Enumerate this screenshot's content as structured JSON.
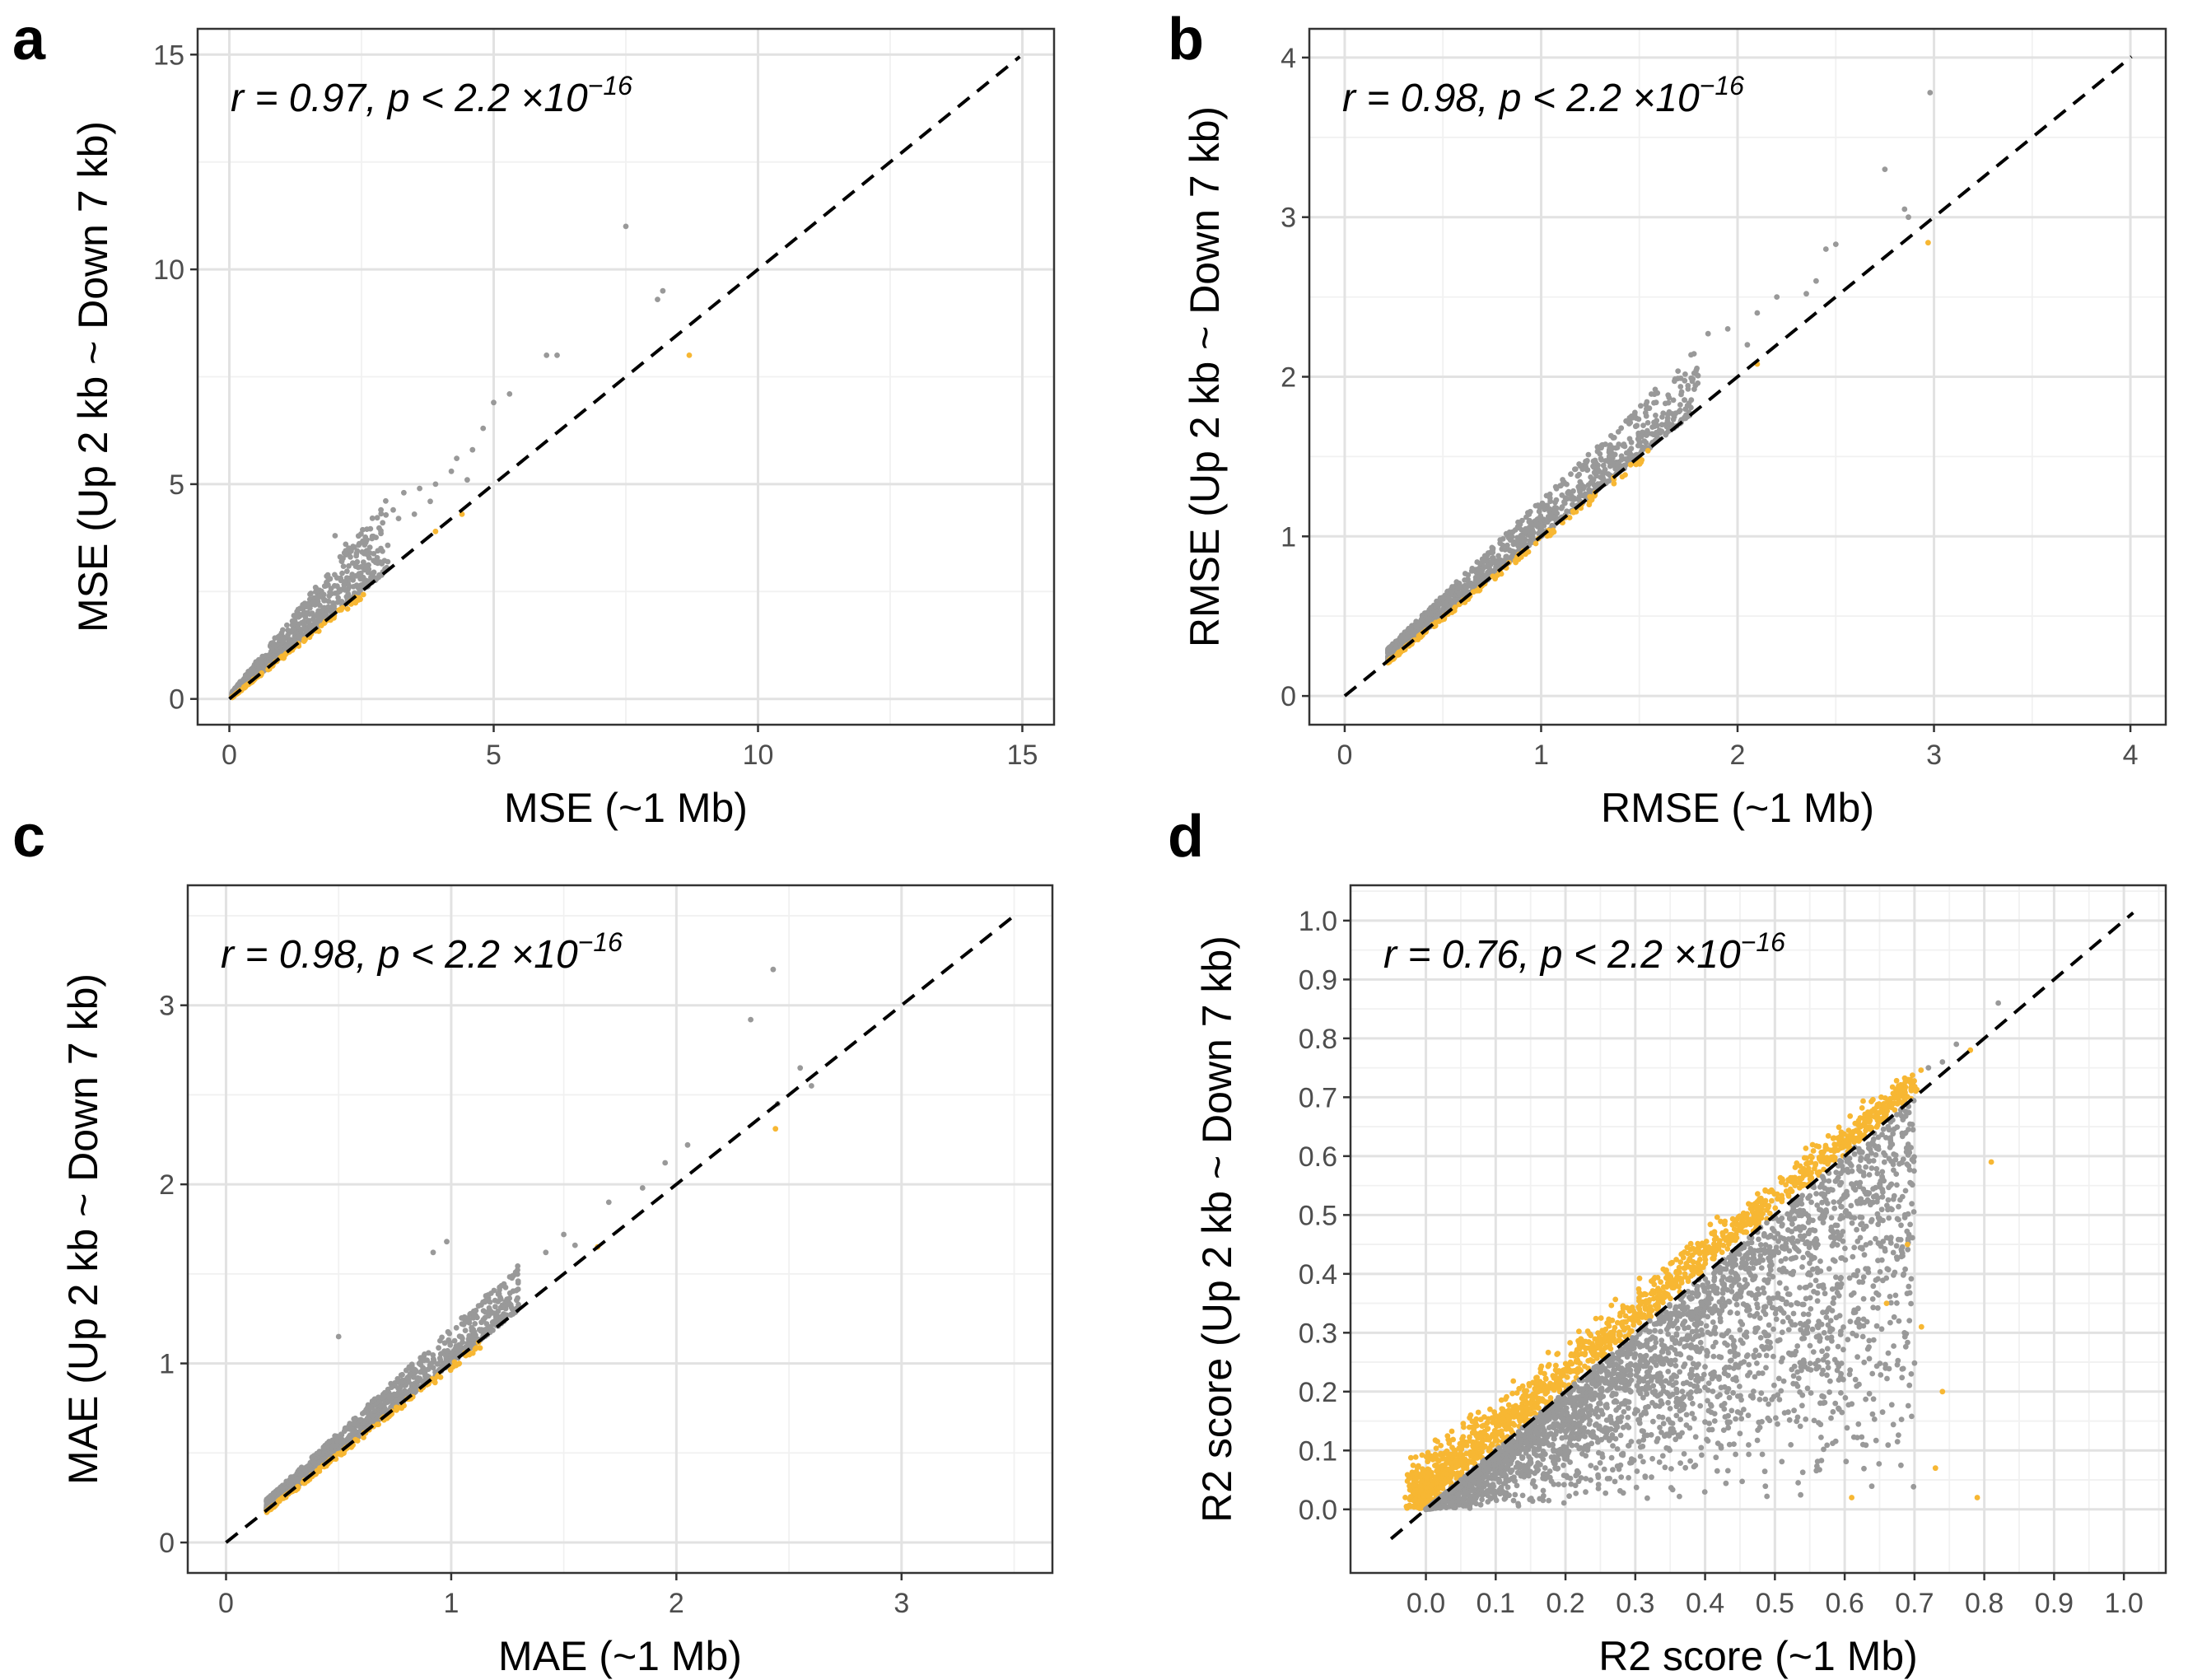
{
  "colors": {
    "above": "#999999",
    "below": "#f7b733"
  },
  "chart_data": [
    {
      "panel": "a",
      "type": "scatter",
      "xlabel": "MSE (~1 Mb)",
      "ylabel": "MSE (Up 2 kb ~ Down 7 kb)",
      "annotation": {
        "main": "r = 0.97, p < 2.2 ×10",
        "exponent": "−16"
      },
      "xlim": [
        -0.6,
        15.6
      ],
      "ylim": [
        -0.6,
        15.6
      ],
      "xticks": [
        0,
        5,
        10,
        15
      ],
      "yticks": [
        0,
        5,
        10,
        15
      ],
      "tick_labels": [
        "0",
        "5",
        "10",
        "15"
      ],
      "grid": true,
      "reference_line": "y = x",
      "cloud": {
        "xmin": 0.05,
        "xmax": 3.0,
        "curve": 1.0,
        "above_spread": 0.55,
        "below_spread": 0.06,
        "n_above": 900,
        "n_below": 120,
        "clip_min": 0
      },
      "outliers": [
        {
          "x": 7.5,
          "y": 11.0,
          "group": "above"
        },
        {
          "x": 8.1,
          "y": 9.3,
          "group": "above"
        },
        {
          "x": 8.2,
          "y": 9.5,
          "group": "above"
        },
        {
          "x": 8.7,
          "y": 8.0,
          "group": "below"
        },
        {
          "x": 6.0,
          "y": 8.0,
          "group": "above"
        },
        {
          "x": 6.2,
          "y": 8.0,
          "group": "above"
        },
        {
          "x": 5.0,
          "y": 6.9,
          "group": "above"
        },
        {
          "x": 5.3,
          "y": 7.1,
          "group": "above"
        },
        {
          "x": 4.8,
          "y": 6.3,
          "group": "above"
        },
        {
          "x": 4.6,
          "y": 5.8,
          "group": "above"
        },
        {
          "x": 4.3,
          "y": 5.6,
          "group": "above"
        },
        {
          "x": 4.2,
          "y": 5.3,
          "group": "above"
        },
        {
          "x": 4.5,
          "y": 5.1,
          "group": "above"
        },
        {
          "x": 3.9,
          "y": 5.0,
          "group": "above"
        },
        {
          "x": 3.6,
          "y": 4.9,
          "group": "above"
        },
        {
          "x": 3.3,
          "y": 4.8,
          "group": "above"
        },
        {
          "x": 3.8,
          "y": 4.6,
          "group": "above"
        },
        {
          "x": 3.1,
          "y": 4.4,
          "group": "above"
        },
        {
          "x": 3.5,
          "y": 4.3,
          "group": "above"
        },
        {
          "x": 3.2,
          "y": 4.2,
          "group": "above"
        },
        {
          "x": 2.9,
          "y": 4.1,
          "group": "above"
        },
        {
          "x": 4.4,
          "y": 4.3,
          "group": "below"
        },
        {
          "x": 3.9,
          "y": 3.9,
          "group": "below"
        },
        {
          "x": 2.0,
          "y": 3.8,
          "group": "above"
        },
        {
          "x": 2.6,
          "y": 3.7,
          "group": "above"
        },
        {
          "x": 2.2,
          "y": 3.6,
          "group": "above"
        }
      ]
    },
    {
      "panel": "b",
      "type": "scatter",
      "xlabel": "RMSE (~1 Mb)",
      "ylabel": "RMSE (Up 2 kb ~ Down 7 kb)",
      "annotation": {
        "main": "r = 0.98, p < 2.2 ×10",
        "exponent": "−16"
      },
      "xlim": [
        -0.18,
        4.18
      ],
      "ylim": [
        -0.18,
        4.18
      ],
      "xticks": [
        0,
        1,
        2,
        3,
        4
      ],
      "yticks": [
        0,
        1,
        2,
        3,
        4
      ],
      "tick_labels": [
        "0",
        "1",
        "2",
        "3",
        "4"
      ],
      "grid": true,
      "reference_line": "y = x",
      "cloud": {
        "xmin": 0.22,
        "xmax": 1.8,
        "curve": 0.9,
        "above_spread": 0.22,
        "below_spread": 0.03,
        "n_above": 1300,
        "n_below": 160,
        "clip_min": 0
      },
      "outliers": [
        {
          "x": 2.98,
          "y": 3.78,
          "group": "above"
        },
        {
          "x": 2.75,
          "y": 3.3,
          "group": "above"
        },
        {
          "x": 2.85,
          "y": 3.05,
          "group": "above"
        },
        {
          "x": 2.87,
          "y": 3.0,
          "group": "above"
        },
        {
          "x": 2.97,
          "y": 2.84,
          "group": "below"
        },
        {
          "x": 2.5,
          "y": 2.83,
          "group": "above"
        },
        {
          "x": 2.45,
          "y": 2.8,
          "group": "above"
        },
        {
          "x": 2.4,
          "y": 2.6,
          "group": "above"
        },
        {
          "x": 2.35,
          "y": 2.52,
          "group": "above"
        },
        {
          "x": 2.2,
          "y": 2.5,
          "group": "above"
        },
        {
          "x": 2.1,
          "y": 2.4,
          "group": "above"
        },
        {
          "x": 1.95,
          "y": 2.3,
          "group": "above"
        },
        {
          "x": 1.85,
          "y": 2.27,
          "group": "above"
        },
        {
          "x": 2.05,
          "y": 2.2,
          "group": "above"
        },
        {
          "x": 2.1,
          "y": 2.08,
          "group": "below"
        }
      ]
    },
    {
      "panel": "c",
      "type": "scatter",
      "xlabel": "MAE (~1 Mb)",
      "ylabel": "MAE (Up 2 kb ~ Down 7 kb)",
      "annotation": {
        "main": "r = 0.98, p < 2.2 ×10",
        "exponent": "−16"
      },
      "xlim": [
        -0.17,
        3.67
      ],
      "ylim": [
        -0.17,
        3.67
      ],
      "xticks": [
        0,
        1,
        2,
        3
      ],
      "yticks": [
        0,
        1,
        2,
        3
      ],
      "tick_labels": [
        "0",
        "1",
        "2",
        "3"
      ],
      "grid": true,
      "reference_line": "y = x",
      "cloud": {
        "xmin": 0.18,
        "xmax": 1.3,
        "curve": 0.85,
        "above_spread": 0.2,
        "below_spread": 0.03,
        "n_above": 1300,
        "n_below": 160,
        "clip_min": 0
      },
      "outliers": [
        {
          "x": 2.43,
          "y": 3.2,
          "group": "above"
        },
        {
          "x": 2.33,
          "y": 2.92,
          "group": "above"
        },
        {
          "x": 2.55,
          "y": 2.65,
          "group": "above"
        },
        {
          "x": 2.6,
          "y": 2.55,
          "group": "above"
        },
        {
          "x": 2.44,
          "y": 2.31,
          "group": "below"
        },
        {
          "x": 2.45,
          "y": 2.45,
          "group": "above"
        },
        {
          "x": 2.05,
          "y": 2.22,
          "group": "above"
        },
        {
          "x": 1.95,
          "y": 2.12,
          "group": "above"
        },
        {
          "x": 1.7,
          "y": 1.9,
          "group": "above"
        },
        {
          "x": 1.85,
          "y": 1.98,
          "group": "above"
        },
        {
          "x": 1.5,
          "y": 1.72,
          "group": "above"
        },
        {
          "x": 1.55,
          "y": 1.66,
          "group": "above"
        },
        {
          "x": 1.42,
          "y": 1.62,
          "group": "above"
        },
        {
          "x": 0.98,
          "y": 1.68,
          "group": "above"
        },
        {
          "x": 0.92,
          "y": 1.62,
          "group": "above"
        },
        {
          "x": 0.5,
          "y": 1.15,
          "group": "above"
        },
        {
          "x": 1.65,
          "y": 1.65,
          "group": "below"
        }
      ]
    },
    {
      "panel": "d",
      "type": "scatter",
      "xlabel": "R2 score (~1 Mb)",
      "ylabel": "R2 score (Up 2 kb ~ Down 7 kb)",
      "annotation": {
        "main": "r = 0.76, p < 2.2 ×10",
        "exponent": "−16"
      },
      "xlim": [
        -0.108,
        1.06
      ],
      "ylim": [
        -0.108,
        1.06
      ],
      "xticks": [
        0.0,
        0.1,
        0.2,
        0.3,
        0.4,
        0.5,
        0.6,
        0.7,
        0.8,
        0.9,
        1.0
      ],
      "yticks": [
        0.0,
        0.1,
        0.2,
        0.3,
        0.4,
        0.5,
        0.6,
        0.7,
        0.8,
        0.9,
        1.0
      ],
      "tick_labels": [
        "0.0",
        "0.1",
        "0.2",
        "0.3",
        "0.4",
        "0.5",
        "0.6",
        "0.7",
        "0.8",
        "0.9",
        "1.0"
      ],
      "grid": true,
      "reference_line": "y = x",
      "cloud": {
        "xmin": 0.0,
        "xmax": 0.8,
        "curve": 1.0,
        "above_spread": 0.09,
        "below_spread": 0.5,
        "n_above": 1500,
        "n_below": 3200,
        "clip_min": -0.03,
        "mode": "r2"
      },
      "outliers": [
        {
          "x": 0.82,
          "y": 0.86,
          "group": "above"
        },
        {
          "x": 0.76,
          "y": 0.79,
          "group": "above"
        },
        {
          "x": 0.78,
          "y": 0.78,
          "group": "below"
        },
        {
          "x": 0.72,
          "y": 0.75,
          "group": "above"
        },
        {
          "x": 0.74,
          "y": 0.76,
          "group": "above"
        },
        {
          "x": 0.81,
          "y": 0.59,
          "group": "below"
        },
        {
          "x": 0.69,
          "y": 0.45,
          "group": "below"
        },
        {
          "x": 0.71,
          "y": 0.31,
          "group": "below"
        },
        {
          "x": 0.73,
          "y": 0.07,
          "group": "below"
        },
        {
          "x": 0.79,
          "y": 0.02,
          "group": "below"
        },
        {
          "x": 0.66,
          "y": 0.35,
          "group": "below"
        },
        {
          "x": 0.74,
          "y": 0.2,
          "group": "below"
        },
        {
          "x": 0.61,
          "y": 0.02,
          "group": "below"
        }
      ]
    }
  ]
}
